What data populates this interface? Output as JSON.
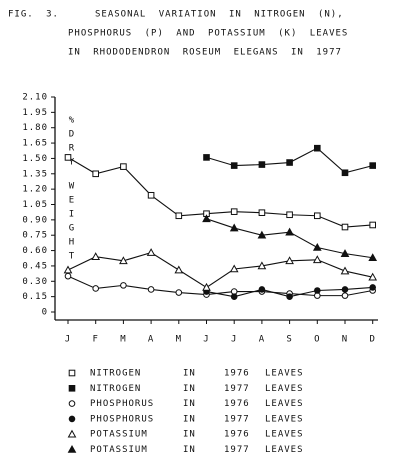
{
  "chart_data": {
    "type": "line",
    "title": [
      "FIG. 3.",
      "SEASONAL VARIATION IN NITROGEN (N),",
      "PHOSPHORUS (P) AND POTASSIUM (K) LEAVES",
      "IN RHODODENDRON ROSEUM ELEGANS IN 1977"
    ],
    "y_label": [
      "%",
      "D",
      "R",
      "Y",
      "W",
      "E",
      "I",
      "G",
      "H",
      "T"
    ],
    "categories": [
      "J",
      "F",
      "M",
      "A",
      "M",
      "J",
      "J",
      "A",
      "S",
      "O",
      "N",
      "D"
    ],
    "ylim": [
      0,
      2.1
    ],
    "yticks": [
      0,
      0.15,
      {
        "value": 0.3,
        "label": "0.30"
      },
      0.45,
      {
        "value": 0.6,
        "label": "0.60"
      },
      0.75,
      {
        "value": 0.9,
        "label": "0.90"
      },
      1.05,
      {
        "value": 1.2,
        "label": "1.20"
      },
      1.35,
      {
        "value": 1.5,
        "label": "1.50"
      },
      1.65,
      {
        "value": 1.8,
        "label": "1.80"
      },
      1.95,
      {
        "value": 2.1,
        "label": "2.10"
      }
    ],
    "series": [
      {
        "name": [
          "NITROGEN",
          "IN",
          "1976",
          "LEAVES"
        ],
        "marker": "square",
        "filled": false,
        "color": "#111111",
        "values": [
          1.51,
          1.35,
          1.42,
          1.14,
          0.94,
          0.96,
          0.98,
          0.97,
          0.95,
          0.94,
          0.83,
          0.85
        ]
      },
      {
        "name": [
          "NITROGEN",
          "IN",
          "1977",
          "LEAVES"
        ],
        "marker": "square",
        "filled": true,
        "color": "#111111",
        "values": [
          null,
          null,
          null,
          null,
          null,
          1.51,
          1.43,
          1.44,
          1.46,
          1.6,
          1.36,
          1.43
        ]
      },
      {
        "name": [
          "PHOSPHORUS",
          "IN",
          "1976",
          "LEAVES"
        ],
        "marker": "circle",
        "filled": false,
        "color": "#111111",
        "values": [
          0.35,
          0.23,
          0.26,
          0.22,
          0.19,
          0.17,
          0.2,
          0.2,
          0.18,
          0.16,
          0.16,
          0.21
        ]
      },
      {
        "name": [
          "PHOSPHORUS",
          "IN",
          "1977",
          "LEAVES"
        ],
        "marker": "circle",
        "filled": true,
        "color": "#111111",
        "values": [
          null,
          null,
          null,
          null,
          null,
          0.2,
          0.15,
          0.22,
          0.15,
          0.21,
          0.22,
          0.24
        ]
      },
      {
        "name": [
          "POTASSIUM",
          "IN",
          "1976",
          "LEAVES"
        ],
        "marker": "triangle",
        "filled": false,
        "color": "#111111",
        "values": [
          0.41,
          0.54,
          0.5,
          0.58,
          0.41,
          0.24,
          0.42,
          0.45,
          0.5,
          0.51,
          0.4,
          0.34
        ]
      },
      {
        "name": [
          "POTASSIUM",
          "IN",
          "1977",
          "LEAVES"
        ],
        "marker": "triangle",
        "filled": true,
        "color": "#111111",
        "values": [
          null,
          null,
          null,
          null,
          null,
          0.91,
          0.82,
          0.75,
          0.78,
          0.63,
          0.57,
          0.53
        ]
      }
    ]
  }
}
